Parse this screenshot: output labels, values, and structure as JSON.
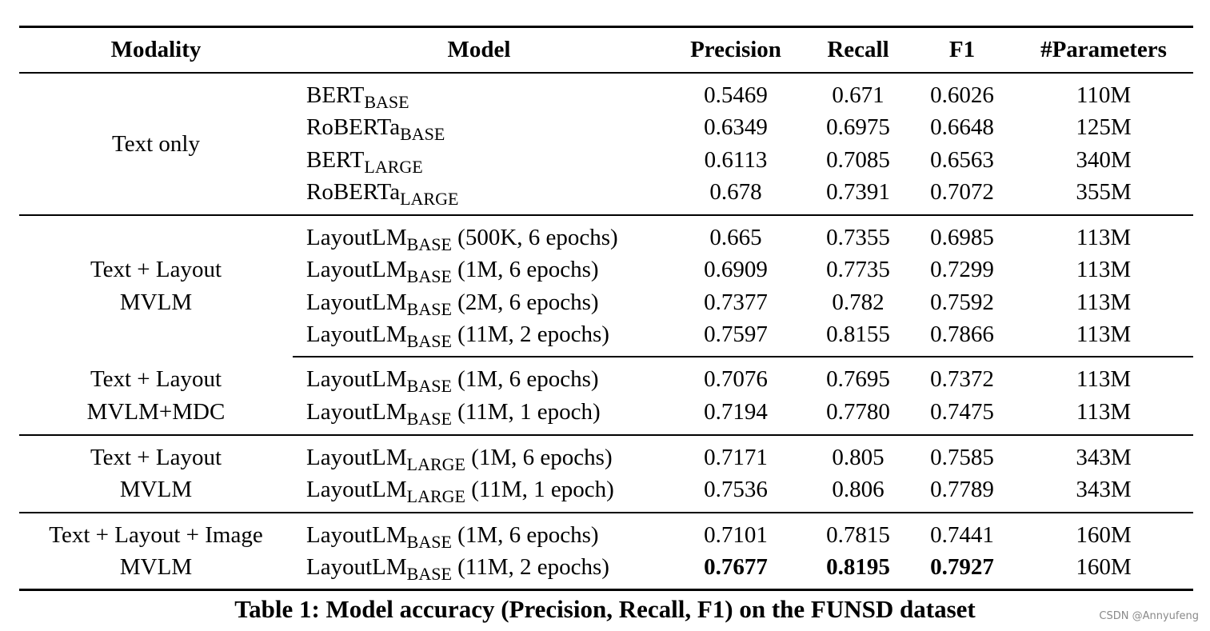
{
  "headers": {
    "modality": "Modality",
    "model": "Model",
    "precision": "Precision",
    "recall": "Recall",
    "f1": "F1",
    "params": "#Parameters"
  },
  "groups": [
    {
      "modality_lines": [
        "Text only"
      ],
      "rows": [
        {
          "model": "BERT",
          "sub": "BASE",
          "suffix": "",
          "precision": "0.5469",
          "recall": "0.671",
          "f1": "0.6026",
          "params": "110M"
        },
        {
          "model": "RoBERTa",
          "sub": "BASE",
          "suffix": "",
          "precision": "0.6349",
          "recall": "0.6975",
          "f1": "0.6648",
          "params": "125M"
        },
        {
          "model": "BERT",
          "sub": "LARGE",
          "suffix": "",
          "precision": "0.6113",
          "recall": "0.7085",
          "f1": "0.6563",
          "params": "340M"
        },
        {
          "model": "RoBERTa",
          "sub": "LARGE",
          "suffix": "",
          "precision": "0.678",
          "recall": "0.7391",
          "f1": "0.7072",
          "params": "355M"
        }
      ]
    },
    {
      "modality_lines": [
        "Text + Layout",
        "MVLM"
      ],
      "rows": [
        {
          "model": "LayoutLM",
          "sub": "BASE",
          "suffix": " (500K, 6 epochs)",
          "precision": "0.665",
          "recall": "0.7355",
          "f1": "0.6985",
          "params": "113M"
        },
        {
          "model": "LayoutLM",
          "sub": "BASE",
          "suffix": " (1M, 6 epochs)",
          "precision": "0.6909",
          "recall": "0.7735",
          "f1": "0.7299",
          "params": "113M"
        },
        {
          "model": "LayoutLM",
          "sub": "BASE",
          "suffix": " (2M, 6 epochs)",
          "precision": "0.7377",
          "recall": "0.782",
          "f1": "0.7592",
          "params": "113M"
        },
        {
          "model": "LayoutLM",
          "sub": "BASE",
          "suffix": " (11M, 2 epochs)",
          "precision": "0.7597",
          "recall": "0.8155",
          "f1": "0.7866",
          "params": "113M"
        }
      ]
    },
    {
      "modality_lines": [
        "Text + Layout",
        "MVLM+MDC"
      ],
      "rows": [
        {
          "model": "LayoutLM",
          "sub": "BASE",
          "suffix": " (1M, 6 epochs)",
          "precision": "0.7076",
          "recall": "0.7695",
          "f1": "0.7372",
          "params": "113M"
        },
        {
          "model": "LayoutLM",
          "sub": "BASE",
          "suffix": " (11M, 1 epoch)",
          "precision": "0.7194",
          "recall": "0.7780",
          "f1": "0.7475",
          "params": "113M"
        }
      ]
    },
    {
      "modality_lines": [
        "Text + Layout",
        "MVLM"
      ],
      "rows": [
        {
          "model": "LayoutLM",
          "sub": "LARGE",
          "suffix": " (1M, 6 epochs)",
          "precision": "0.7171",
          "recall": "0.805",
          "f1": "0.7585",
          "params": "343M"
        },
        {
          "model": "LayoutLM",
          "sub": "LARGE",
          "suffix": " (11M, 1 epoch)",
          "precision": "0.7536",
          "recall": "0.806",
          "f1": "0.7789",
          "params": "343M"
        }
      ]
    },
    {
      "modality_lines": [
        "Text + Layout + Image",
        "MVLM"
      ],
      "rows": [
        {
          "model": "LayoutLM",
          "sub": "BASE",
          "suffix": " (1M, 6 epochs)",
          "precision": "0.7101",
          "recall": "0.7815",
          "f1": "0.7441",
          "params": "160M"
        },
        {
          "model": "LayoutLM",
          "sub": "BASE",
          "suffix": " (11M, 2 epochs)",
          "precision": "0.7677",
          "recall": "0.8195",
          "f1": "0.7927",
          "params": "160M",
          "bold_scores": true
        }
      ]
    }
  ],
  "caption": "Table 1: Model accuracy (Precision, Recall, F1) on the FUNSD dataset",
  "watermark": "CSDN @Annyufeng"
}
